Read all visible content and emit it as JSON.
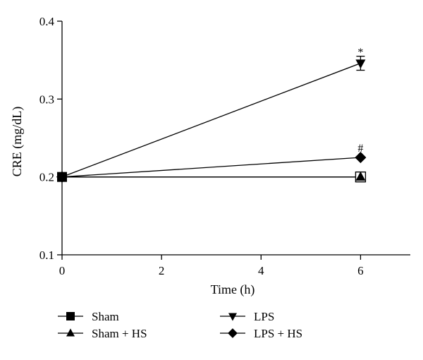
{
  "chart_data": {
    "type": "line",
    "xlabel": "Time (h)",
    "ylabel": "CRE (mg/dL)",
    "xlim": [
      0,
      7
    ],
    "ylim": [
      0.1,
      0.4
    ],
    "xticks": [
      0,
      2,
      4,
      6
    ],
    "xtick_labels": [
      "0",
      "2",
      "4",
      "6"
    ],
    "yticks": [
      0.1,
      0.2,
      0.3,
      0.4
    ],
    "ytick_labels": [
      "0.1",
      "0.2",
      "0.3",
      "0.4"
    ],
    "grid": false,
    "legend_position": "bottom",
    "series": [
      {
        "name": "Sham",
        "marker": "square-filled",
        "x": [
          0,
          6
        ],
        "y": [
          0.2,
          0.2
        ]
      },
      {
        "name": "Sham + HS",
        "marker": "triangle-up",
        "x": [
          0,
          6
        ],
        "y": [
          0.2,
          0.2
        ]
      },
      {
        "name": "LPS",
        "marker": "triangle-down",
        "x": [
          0,
          6
        ],
        "y": [
          0.2,
          0.346
        ],
        "error": [
          0,
          0.009
        ]
      },
      {
        "name": "LPS + HS",
        "marker": "diamond",
        "x": [
          0,
          6
        ],
        "y": [
          0.2,
          0.225
        ]
      }
    ],
    "annotations": [
      {
        "text": "*",
        "x": 6,
        "y": 0.36
      },
      {
        "text": "#",
        "x": 6,
        "y": 0.237
      }
    ]
  }
}
